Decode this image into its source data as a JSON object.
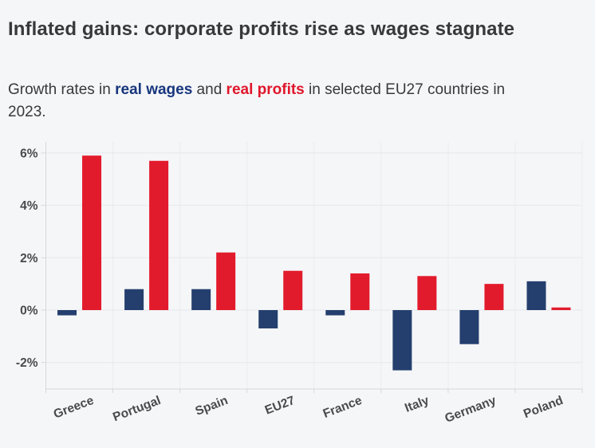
{
  "page": {
    "background": "#f5f6f8"
  },
  "header": {
    "title": "Inflated gains: corporate profits rise as wages stagnate",
    "subtitle": {
      "prefix": "Growth rates in ",
      "wages_label": "real wages",
      "middle": " and ",
      "profits_label": "real profits",
      "suffix": " in selected EU27 countries in 2023."
    }
  },
  "colors": {
    "background": "#f5f6f8",
    "title_text": "#39393b",
    "subtitle_text": "#39393b",
    "wages_text": "#17367d",
    "profits_text": "#e0172b",
    "wages_bar": "#243f6e",
    "profits_bar": "#e21b2c",
    "axis_text": "#4a4a4d",
    "grid_line_h": "#e7e8ed",
    "grid_line_v": "#ececf1",
    "axis_line": "#d7d8dd"
  },
  "chart_data": {
    "type": "bar",
    "title": "Inflated gains: corporate profits rise as wages stagnate",
    "subtitle": "Growth rates in real wages and real profits in selected EU27 countries in 2023.",
    "categories": [
      "Greece",
      "Portugal",
      "Spain",
      "EU27",
      "France",
      "Italy",
      "Germany",
      "Poland"
    ],
    "series": [
      {
        "name": "real wages",
        "color_key": "wages_bar",
        "values": [
          -0.2,
          0.8,
          0.8,
          -0.7,
          -0.2,
          -2.3,
          -1.3,
          1.1
        ]
      },
      {
        "name": "real profits",
        "color_key": "profits_bar",
        "values": [
          5.9,
          5.7,
          2.2,
          1.5,
          1.4,
          1.3,
          1.0,
          0.1
        ]
      }
    ],
    "xlabel": "",
    "ylabel": "",
    "ylim": [
      -2.9,
      6.4
    ],
    "yticks": [
      6,
      4,
      2,
      0,
      -2
    ],
    "ytick_suffix": "%",
    "grid": true,
    "legend_position": "inline-in-subtitle",
    "x_label_rotation_deg": -21
  }
}
